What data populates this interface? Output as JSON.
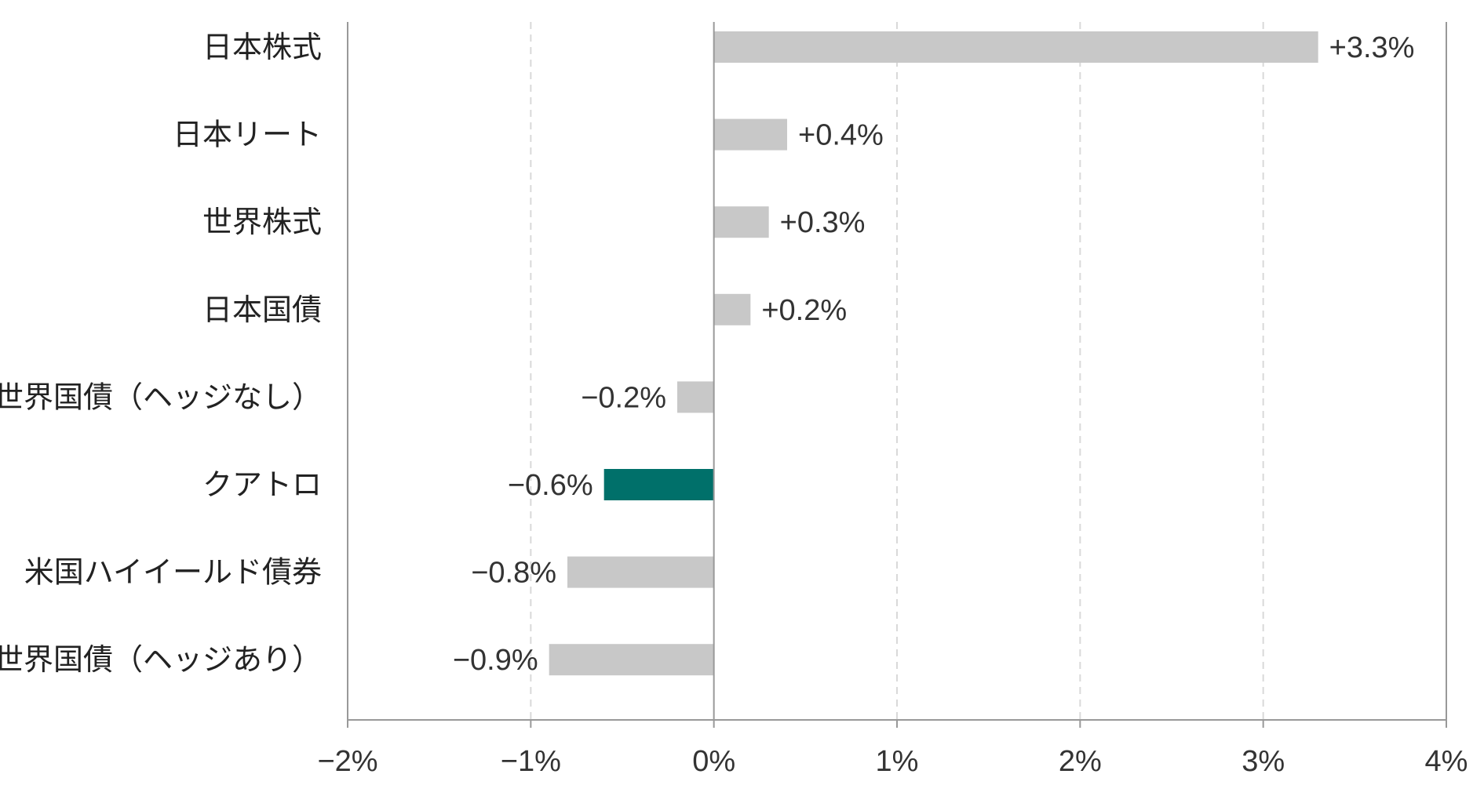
{
  "chart_data": {
    "type": "bar",
    "orientation": "horizontal",
    "categories": [
      "日本株式",
      "日本リート",
      "世界株式",
      "日本国債",
      "世界国債（ヘッジなし）",
      "クアトロ",
      "米国ハイイールド債券",
      "世界国債（ヘッジあり）"
    ],
    "values": [
      3.3,
      0.4,
      0.3,
      0.2,
      -0.2,
      -0.6,
      -0.8,
      -0.9
    ],
    "value_labels": [
      "+3.3%",
      "+0.4%",
      "+0.3%",
      "+0.2%",
      "−0.2%",
      "−0.6%",
      "−0.8%",
      "−0.9%"
    ],
    "highlight_category": "クアトロ",
    "xlim": [
      -2,
      4
    ],
    "x_ticks": [
      -2,
      -1,
      0,
      1,
      2,
      3,
      4
    ],
    "x_tick_labels": [
      "−2%",
      "−1%",
      "0%",
      "1%",
      "2%",
      "3%",
      "4%"
    ],
    "grid": "vertical dashed",
    "legend": "none",
    "title": "",
    "xlabel": "",
    "ylabel": "",
    "colors": {
      "bar": "#c8c8c8",
      "highlight_bar": "#00706a",
      "highlight_label": "#00706a",
      "axis": "#999999",
      "grid": "#d9d9d9",
      "text": "#333333"
    }
  }
}
